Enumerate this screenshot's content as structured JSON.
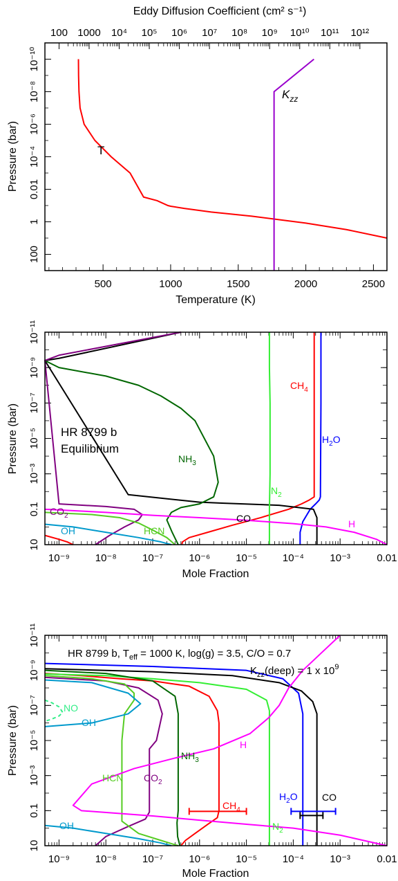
{
  "chart_data": [
    {
      "type": "line",
      "top_axis_label": "Eddy Diffusion Coefficient (cm² s⁻¹)",
      "xlabel": "Temperature (K)",
      "ylabel": "Pressure (bar)",
      "xlim": [
        70,
        2600
      ],
      "ylim": [
        1000,
        1e-11
      ],
      "y_scale": "log",
      "x_ticks": [
        500,
        1000,
        1500,
        2000,
        2500
      ],
      "y_ticks": [
        {
          "v": 100,
          "label": "100"
        },
        {
          "v": 1,
          "label": "1"
        },
        {
          "v": 0.01,
          "label": "0.01"
        },
        {
          "v": 0.0001,
          "label": "10⁻⁴"
        },
        {
          "v": 1e-06,
          "label": "10⁻⁶"
        },
        {
          "v": 1e-08,
          "label": "10⁻⁸"
        },
        {
          "v": 1e-10,
          "label": "10⁻¹⁰"
        }
      ],
      "top_ticks": [
        {
          "e": 2,
          "label": "100"
        },
        {
          "e": 3,
          "label": "1000"
        },
        {
          "e": 4,
          "label": "10⁴"
        },
        {
          "e": 5,
          "label": "10⁵"
        },
        {
          "e": 6,
          "label": "10⁶"
        },
        {
          "e": 7,
          "label": "10⁷"
        },
        {
          "e": 8,
          "label": "10⁸"
        },
        {
          "e": 9,
          "label": "10⁹"
        },
        {
          "e": 10,
          "label": "10¹⁰"
        },
        {
          "e": 11,
          "label": "10¹¹"
        },
        {
          "e": 12,
          "label": "10¹²"
        }
      ],
      "top_axis_range_log10": [
        1.53,
        12.9
      ],
      "series": [
        {
          "name": "T",
          "color": "#ff0000",
          "x": [
            318,
            319,
            322,
            330,
            360,
            440,
            560,
            700,
            800,
            900,
            980,
            1000,
            1100,
            1300,
            1600,
            2000,
            2300,
            2600
          ],
          "y": [
            1e-10,
            1e-09,
            1e-08,
            1e-07,
            1e-06,
            1e-05,
            0.0001,
            0.001,
            0.03,
            0.05,
            0.1,
            0.11,
            0.15,
            0.25,
            0.45,
            1.2,
            3,
            10
          ]
        },
        {
          "name": "Kzz",
          "color": "#9900cc",
          "x": [
            1765,
            1765,
            1765,
            2060
          ],
          "y": [
            1000,
            0.01,
            1e-08,
            1e-10
          ]
        }
      ],
      "annotations": [
        {
          "text": "T",
          "color": "#000000"
        },
        {
          "text": "K",
          "sub": "zz",
          "color": "#000000"
        }
      ]
    },
    {
      "type": "line",
      "xlabel": "Mole Fraction",
      "ylabel": "Pressure (bar)",
      "x_scale": "log",
      "y_scale": "log",
      "xlim": [
        5e-10,
        0.01
      ],
      "ylim": [
        10,
        1e-11
      ],
      "x_ticks": [
        {
          "v": 1e-09,
          "label": "10⁻⁹"
        },
        {
          "v": 1e-08,
          "label": "10⁻⁸"
        },
        {
          "v": 1e-07,
          "label": "10⁻⁷"
        },
        {
          "v": 1e-06,
          "label": "10⁻⁶"
        },
        {
          "v": 1e-05,
          "label": "10⁻⁵"
        },
        {
          "v": 0.0001,
          "label": "10⁻⁴"
        },
        {
          "v": 0.001,
          "label": "10⁻³"
        },
        {
          "v": 0.01,
          "label": "0.01"
        }
      ],
      "y_ticks": [
        {
          "v": 10,
          "label": "10"
        },
        {
          "v": 0.1,
          "label": "0.1"
        },
        {
          "v": 0.001,
          "label": "10⁻³"
        },
        {
          "v": 1e-05,
          "label": "10⁻⁵"
        },
        {
          "v": 1e-07,
          "label": "10⁻⁷"
        },
        {
          "v": 1e-09,
          "label": "10⁻⁹"
        },
        {
          "v": 1e-11,
          "label": "10⁻¹¹"
        }
      ],
      "annotations": [
        {
          "text": "HR 8799 b",
          "color": "#000000"
        },
        {
          "text": "Equilibrium",
          "color": "#000000"
        }
      ],
      "series": [
        {
          "name": "CH4",
          "label": "CH",
          "sub": "4",
          "color": "#ff0000",
          "x": [
            0.00028,
            0.00028,
            0.00028,
            0.00022,
            0.00015,
            8e-05,
            2e-05,
            5e-06,
            1.5e-06,
            6e-07,
            4.3e-07,
            4.2e-07
          ],
          "y": [
            1e-11,
            1e-07,
            0.02,
            0.03,
            0.05,
            0.1,
            0.3,
            0.8,
            2,
            4,
            7,
            10
          ]
        },
        {
          "name": "H2O",
          "label": "H",
          "sub": "2",
          "label_tail": "O",
          "color": "#0000ff",
          "x": [
            0.00039,
            0.00039,
            0.00038,
            0.00036,
            0.0003,
            0.00023,
            0.00016,
            0.00014,
            0.00014
          ],
          "y": [
            1e-11,
            1e-07,
            0.02,
            0.03,
            0.05,
            0.1,
            0.5,
            2,
            10
          ]
        },
        {
          "name": "CO",
          "label": "CO",
          "color": "#000000",
          "x": [
            4e-07,
            1e-09,
            5e-10,
            3e-08,
            1e-06,
            3e-06,
            5e-05,
            0.00027,
            0.00032,
            0.00032
          ],
          "y": [
            1e-11,
            3e-10,
            4e-10,
            0.015,
            0.04,
            0.045,
            0.06,
            0.1,
            0.3,
            10
          ]
        },
        {
          "name": "N2",
          "label": "N",
          "sub": "2",
          "color": "#33ee33",
          "x": [
            3.1e-05,
            3.1e-05,
            3.2e-05,
            3.2e-05,
            3.1e-05,
            3.1e-05
          ],
          "y": [
            1e-11,
            1e-09,
            1e-07,
            0.001,
            0.1,
            10
          ]
        },
        {
          "name": "NH3",
          "label": "NH",
          "sub": "3",
          "color": "#006600",
          "x": [
            5e-10,
            1e-09,
            1e-08,
            5e-08,
            1.5e-07,
            4e-07,
            8e-07,
            2e-06,
            2.5e-06,
            2e-06,
            1e-06,
            4e-07,
            2.5e-07,
            2e-07,
            2.6e-07,
            3.5e-07
          ],
          "y": [
            4e-10,
            1e-09,
            3e-09,
            1e-08,
            4e-08,
            2e-07,
            1e-06,
            0.0001,
            0.003,
            0.02,
            0.05,
            0.08,
            0.15,
            0.4,
            2,
            10
          ]
        },
        {
          "name": "CO2",
          "label": "CO",
          "sub": "2",
          "color": "#800080",
          "x": [
            4e-07,
            1e-09,
            5e-10,
            1e-09,
            1e-08,
            4e-08,
            6e-08,
            5e-08,
            2.5e-08,
            1.2e-08,
            6e-09
          ],
          "y": [
            1e-11,
            2e-10,
            4e-10,
            0.05,
            0.07,
            0.1,
            0.2,
            0.4,
            1,
            3,
            10
          ]
        },
        {
          "name": "HCN",
          "label": "HCN",
          "color": "#55cc22",
          "x": [
            5e-10,
            5e-09,
            2e-08,
            5e-08,
            1e-07,
            2e-07,
            3e-07
          ],
          "y": [
            0.15,
            0.2,
            0.3,
            0.6,
            1.5,
            4,
            10
          ]
        },
        {
          "name": "OH",
          "label": "OH",
          "color": "#0099cc",
          "x": [
            5e-10,
            2e-09,
            1e-08,
            5e-08,
            1.5e-07,
            2.5e-07
          ],
          "y": [
            0.7,
            1,
            2,
            4,
            7,
            10
          ]
        },
        {
          "name": "H",
          "label": "H",
          "color": "#ff00ff",
          "x": [
            5e-10,
            1e-08,
            1e-07,
            1e-06,
            1e-05,
            0.0001,
            0.0005,
            0.002,
            0.006,
            0.01
          ],
          "y": [
            0.1,
            0.15,
            0.22,
            0.3,
            0.42,
            0.65,
            1,
            2,
            5,
            10
          ]
        },
        {
          "name": "red-deep",
          "label": "",
          "color": "#ff0000",
          "x": [
            5e-10,
            1e-09,
            1.5e-09,
            2e-09
          ],
          "y": [
            3,
            5,
            7,
            10
          ]
        }
      ]
    },
    {
      "type": "line",
      "xlabel": "Mole Fraction",
      "ylabel": "Pressure (bar)",
      "x_scale": "log",
      "y_scale": "log",
      "xlim": [
        5e-10,
        0.01
      ],
      "ylim": [
        10,
        1e-11
      ],
      "x_ticks": [
        {
          "v": 1e-09,
          "label": "10⁻⁹"
        },
        {
          "v": 1e-08,
          "label": "10⁻⁸"
        },
        {
          "v": 1e-07,
          "label": "10⁻⁷"
        },
        {
          "v": 1e-06,
          "label": "10⁻⁶"
        },
        {
          "v": 1e-05,
          "label": "10⁻⁵"
        },
        {
          "v": 0.0001,
          "label": "10⁻⁴"
        },
        {
          "v": 0.001,
          "label": "10⁻³"
        },
        {
          "v": 0.01,
          "label": "0.01"
        }
      ],
      "y_ticks": [
        {
          "v": 10,
          "label": "10"
        },
        {
          "v": 0.1,
          "label": "0.1"
        },
        {
          "v": 0.001,
          "label": "10⁻³"
        },
        {
          "v": 1e-05,
          "label": "10⁻⁵"
        },
        {
          "v": 1e-07,
          "label": "10⁻⁷"
        },
        {
          "v": 1e-09,
          "label": "10⁻⁹"
        },
        {
          "v": 1e-11,
          "label": "10⁻¹¹"
        }
      ],
      "title_line": {
        "part1": "HR 8799 b, T",
        "sub1": "eff",
        "part2": " = 1000 K, log(g) = 3.5, C/O = 0.7"
      },
      "kzz_line": {
        "part1": "K",
        "sub1": "zz",
        "part2": "(deep) = 1 x 10",
        "sup": "9"
      },
      "series": [
        {
          "name": "CH4",
          "label": "CH",
          "sub": "4",
          "color": "#ff0000",
          "x": [
            5e-10,
            3e-09,
            2e-08,
            1e-07,
            6e-07,
            1.6e-06,
            2.4e-06,
            2.6e-06,
            2.6e-06,
            2.4e-06,
            1.5e-06,
            8e-07,
            5e-07,
            4e-07
          ],
          "y": [
            1.5e-09,
            2e-09,
            3e-09,
            4e-09,
            8e-09,
            3e-08,
            2e-07,
            1e-06,
            0.1,
            0.25,
            0.6,
            2,
            5,
            10
          ]
        },
        {
          "name": "H2O",
          "label": "H",
          "sub": "2",
          "label_tail": "O",
          "color": "#0000ff",
          "x": [
            5e-10,
            1e-07,
            1e-05,
            6e-05,
            0.00013,
            0.00016,
            0.00016
          ],
          "y": [
            4e-10,
            6e-10,
            1e-09,
            3e-09,
            2e-08,
            3e-07,
            10
          ]
        },
        {
          "name": "CO",
          "label": "CO",
          "color": "#000000",
          "x": [
            5e-10,
            1e-07,
            5e-06,
            5e-05,
            0.00015,
            0.00026,
            0.00032,
            0.00032
          ],
          "y": [
            8e-10,
            1.2e-09,
            2e-09,
            5e-09,
            1.5e-08,
            6e-08,
            3e-07,
            10
          ]
        },
        {
          "name": "N2",
          "label": "N",
          "sub": "2",
          "color": "#33ee33",
          "x": [
            5e-10,
            1e-08,
            1e-07,
            1e-06,
            1e-05,
            2.7e-05,
            3.1e-05,
            3.1e-05
          ],
          "y": [
            1.6e-09,
            2e-09,
            3e-09,
            5e-09,
            1.2e-08,
            5e-08,
            2e-07,
            10
          ]
        },
        {
          "name": "NH3",
          "label": "NH",
          "sub": "3",
          "color": "#006600",
          "x": [
            5e-10,
            1e-08,
            1e-07,
            3e-07,
            3.5e-07,
            3.5e-07,
            3.3e-07,
            3.4e-07,
            3.8e-07
          ],
          "y": [
            1e-09,
            1.5e-09,
            4e-09,
            3e-08,
            3e-07,
            0.1,
            0.5,
            3,
            10
          ]
        },
        {
          "name": "CO2",
          "label": "CO",
          "sub": "2",
          "color": "#800080",
          "x": [
            5e-10,
            1e-08,
            5e-08,
            1.3e-07,
            1.6e-07,
            1.2e-07,
            8.5e-08,
            8.5e-08,
            7e-08,
            3e-08,
            1e-08,
            6e-09
          ],
          "y": [
            2.5e-09,
            4e-09,
            1e-08,
            5e-08,
            3e-07,
            1e-05,
            3e-05,
            0.12,
            0.3,
            0.8,
            3,
            10
          ]
        },
        {
          "name": "HCN",
          "label": "HCN",
          "color": "#55cc22",
          "x": [
            5e-10,
            5e-09,
            2.5e-08,
            4e-08,
            4e-08,
            2.5e-08,
            2.2e-08,
            2.2e-08,
            5e-08,
            1.5e-07,
            3.5e-07
          ],
          "y": [
            2e-09,
            3e-09,
            6e-09,
            2e-08,
            5e-08,
            3e-07,
            1e-05,
            0.4,
            2,
            5,
            10
          ]
        },
        {
          "name": "OH",
          "label": "OH",
          "color": "#0099cc",
          "x": [
            5e-10,
            5e-09,
            3e-08,
            5.5e-08,
            3e-08,
            5e-09,
            7e-10,
            5e-10
          ],
          "y": [
            3.5e-09,
            5e-09,
            2e-08,
            8e-08,
            3e-07,
            1e-06,
            1.5e-06,
            1.6e-06
          ]
        },
        {
          "name": "OH-deep",
          "label": "",
          "color": "#0099cc",
          "x": [
            5e-10,
            2e-09,
            1e-08,
            5e-08,
            1.5e-07,
            2.5e-07
          ],
          "y": [
            0.7,
            1,
            2,
            4,
            7,
            10
          ]
        },
        {
          "name": "NO",
          "label": "NO",
          "color": "#33ee88",
          "dashed": true,
          "x": [
            5e-10,
            7e-10,
            1e-09,
            1.2e-09,
            1e-09,
            7e-10,
            5e-10
          ],
          "y": [
            5e-08,
            7e-08,
            1.2e-07,
            2.5e-07,
            4e-07,
            6e-07,
            8e-07
          ]
        },
        {
          "name": "H",
          "label": "H",
          "color": "#ff00ff",
          "x": [
            0.001,
            0.0004,
            0.00016,
            8e-05,
            5e-05,
            3e-05,
            1.2e-05,
            2e-06,
            3e-07,
            4e-08,
            5e-09,
            2e-09,
            3e-09,
            1e-07,
            1e-06,
            1e-05,
            0.0001,
            0.001,
            0.01
          ],
          "y": [
            1e-11,
            1e-10,
            1e-09,
            1e-08,
            1e-07,
            5e-07,
            4e-06,
            3e-05,
            0.0001,
            0.0004,
            0.003,
            0.05,
            0.1,
            0.2,
            0.35,
            0.6,
            1,
            2.5,
            10
          ]
        }
      ],
      "error_bars": [
        {
          "name": "CH4",
          "color": "#ff0000",
          "y": 0.11,
          "x_min": 6e-07,
          "x_max": 1e-05
        },
        {
          "name": "H2O",
          "color": "#0000ff",
          "y": 0.11,
          "x_min": 9e-05,
          "x_max": 0.0008
        },
        {
          "name": "CO",
          "color": "#000000",
          "y": 0.19,
          "x_min": 0.00014,
          "x_max": 0.00043
        }
      ]
    }
  ]
}
